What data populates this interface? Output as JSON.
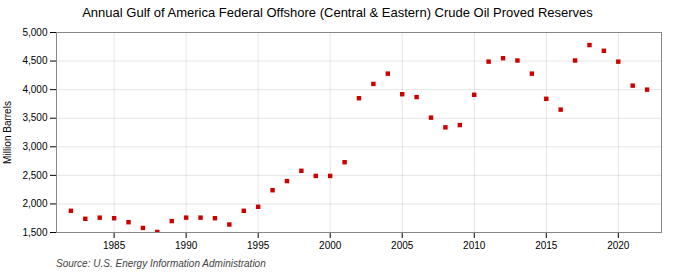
{
  "chart_data": {
    "type": "scatter",
    "title": "Annual Gulf of America Federal Offshore (Central & Eastern) Crude Oil Proved Reserves",
    "ylabel": "Million Barrels",
    "source": "Source: U.S. Energy Information Administration",
    "x": [
      1982,
      1983,
      1984,
      1985,
      1986,
      1987,
      1988,
      1989,
      1990,
      1991,
      1992,
      1993,
      1994,
      1995,
      1996,
      1997,
      1998,
      1999,
      2000,
      2001,
      2002,
      2003,
      2004,
      2005,
      2006,
      2007,
      2008,
      2009,
      2010,
      2011,
      2012,
      2013,
      2014,
      2015,
      2016,
      2017,
      2018,
      2019,
      2020,
      2021,
      2022
    ],
    "values": [
      1880,
      1740,
      1760,
      1750,
      1680,
      1580,
      1510,
      1700,
      1760,
      1760,
      1750,
      1640,
      1880,
      1950,
      2240,
      2400,
      2580,
      2490,
      2490,
      2730,
      3850,
      4100,
      4280,
      3920,
      3870,
      3510,
      3340,
      3380,
      3910,
      4490,
      4550,
      4510,
      4280,
      3840,
      3650,
      4510,
      4780,
      4680,
      4490,
      4070,
      4000
    ],
    "color": "#cc0000",
    "marker": "square",
    "xlim": [
      1981,
      2023
    ],
    "xticks": [
      1985,
      1990,
      1995,
      2000,
      2005,
      2010,
      2015,
      2020
    ],
    "ylim": [
      1500,
      5000
    ],
    "yticks": [
      {
        "value": 1500,
        "label": "1,500"
      },
      {
        "value": 2000,
        "label": "2,000"
      },
      {
        "value": 2500,
        "label": "2,500"
      },
      {
        "value": 3000,
        "label": "3,000"
      },
      {
        "value": 3500,
        "label": "3,500"
      },
      {
        "value": 4000,
        "label": "4,000"
      },
      {
        "value": 4500,
        "label": "4,500"
      },
      {
        "value": 5000,
        "label": "5,000"
      }
    ],
    "grid": true
  }
}
